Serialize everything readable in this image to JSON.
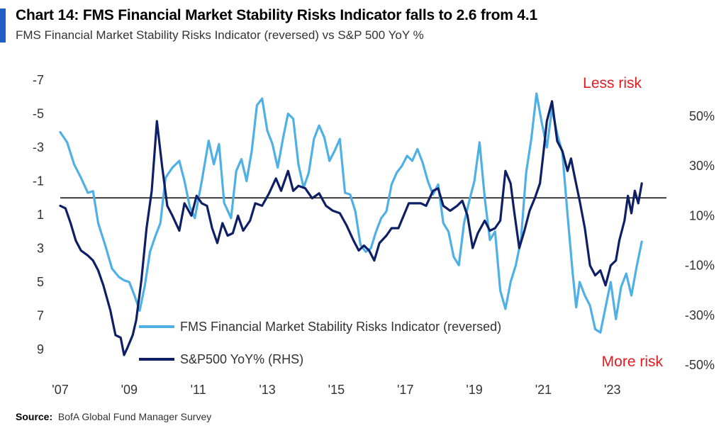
{
  "title": "Chart 14: FMS Financial Market Stability Risks Indicator falls to 2.6 from 4.1",
  "subtitle": "FMS Financial Market Stability Risks Indicator (reversed) vs S&P 500 YoY %",
  "source_label": "Source:",
  "source_text": "BofA Global Fund Manager Survey",
  "colors": {
    "accent": "#1F5FC7",
    "light_series": "#4FB0E6",
    "dark_series": "#0E1F66",
    "annotation": "#E31B23",
    "zero_line": "#000000"
  },
  "chart_data": {
    "type": "line",
    "x_range": [
      2007.0,
      2023.6
    ],
    "x_ticks": [
      {
        "value": 2007,
        "label": "'07"
      },
      {
        "value": 2009,
        "label": "'09"
      },
      {
        "value": 2011,
        "label": "'11"
      },
      {
        "value": 2013,
        "label": "'13"
      },
      {
        "value": 2015,
        "label": "'15"
      },
      {
        "value": 2017,
        "label": "'17"
      },
      {
        "value": 2019,
        "label": "'19"
      },
      {
        "value": 2021,
        "label": "'21"
      },
      {
        "value": 2023,
        "label": "'23"
      }
    ],
    "left_axis": {
      "reversed": true,
      "range": [
        -7,
        9
      ],
      "ticks": [
        {
          "value": -7,
          "label": "-7"
        },
        {
          "value": -5,
          "label": "-5"
        },
        {
          "value": -3,
          "label": "-3"
        },
        {
          "value": -1,
          "label": "-1"
        },
        {
          "value": 1,
          "label": "1"
        },
        {
          "value": 3,
          "label": "3"
        },
        {
          "value": 5,
          "label": "5"
        },
        {
          "value": 7,
          "label": "7"
        },
        {
          "value": 9,
          "label": "9"
        }
      ]
    },
    "right_axis": {
      "range": [
        -50,
        60
      ],
      "ticks": [
        {
          "value": 50,
          "label": "50%"
        },
        {
          "value": 30,
          "label": "30%"
        },
        {
          "value": 10,
          "label": "10%"
        },
        {
          "value": -10,
          "label": "-10%"
        },
        {
          "value": -30,
          "label": "-30%"
        },
        {
          "value": -50,
          "label": "-50%"
        }
      ]
    },
    "reference_line": {
      "axis": "left",
      "value": 0
    },
    "annotations": [
      {
        "text": "Less risk",
        "position": "top-right"
      },
      {
        "text": "More risk",
        "position": "bottom-right"
      }
    ],
    "legend": {
      "placement": "bottom-center"
    },
    "series": [
      {
        "name": "FMS Financial Market Stability Risks Indicator (reversed)",
        "axis": "left",
        "points": [
          [
            2007.0,
            -3.9
          ],
          [
            2007.2,
            -3.3
          ],
          [
            2007.4,
            -2.0
          ],
          [
            2007.6,
            -1.2
          ],
          [
            2007.8,
            -0.3
          ],
          [
            2007.95,
            -0.4
          ],
          [
            2008.1,
            1.5
          ],
          [
            2008.3,
            2.8
          ],
          [
            2008.5,
            4.2
          ],
          [
            2008.7,
            4.7
          ],
          [
            2008.85,
            4.9
          ],
          [
            2009.0,
            5.0
          ],
          [
            2009.15,
            5.8
          ],
          [
            2009.3,
            6.7
          ],
          [
            2009.45,
            5.2
          ],
          [
            2009.6,
            3.2
          ],
          [
            2009.75,
            2.3
          ],
          [
            2009.9,
            1.5
          ],
          [
            2010.05,
            -1.2
          ],
          [
            2010.25,
            -1.8
          ],
          [
            2010.45,
            -2.2
          ],
          [
            2010.6,
            -1.0
          ],
          [
            2010.75,
            0.5
          ],
          [
            2010.9,
            1.2
          ],
          [
            2011.1,
            -1.0
          ],
          [
            2011.3,
            -3.4
          ],
          [
            2011.45,
            -2.0
          ],
          [
            2011.6,
            -3.2
          ],
          [
            2011.75,
            0.3
          ],
          [
            2011.95,
            1.2
          ],
          [
            2012.1,
            -1.6
          ],
          [
            2012.25,
            -2.3
          ],
          [
            2012.4,
            -1.0
          ],
          [
            2012.55,
            -2.8
          ],
          [
            2012.7,
            -5.5
          ],
          [
            2012.85,
            -5.9
          ],
          [
            2013.0,
            -4.0
          ],
          [
            2013.15,
            -3.2
          ],
          [
            2013.3,
            -1.8
          ],
          [
            2013.45,
            -3.5
          ],
          [
            2013.6,
            -5.0
          ],
          [
            2013.75,
            -4.7
          ],
          [
            2013.9,
            -2.0
          ],
          [
            2014.05,
            -0.6
          ],
          [
            2014.2,
            -1.5
          ],
          [
            2014.35,
            -3.5
          ],
          [
            2014.5,
            -4.3
          ],
          [
            2014.65,
            -3.6
          ],
          [
            2014.8,
            -2.2
          ],
          [
            2014.95,
            -2.8
          ],
          [
            2015.1,
            -3.5
          ],
          [
            2015.25,
            -0.3
          ],
          [
            2015.4,
            -0.2
          ],
          [
            2015.55,
            0.8
          ],
          [
            2015.7,
            2.8
          ],
          [
            2015.85,
            3.2
          ],
          [
            2016.0,
            3.0
          ],
          [
            2016.15,
            2.0
          ],
          [
            2016.3,
            1.2
          ],
          [
            2016.45,
            0.8
          ],
          [
            2016.6,
            -0.8
          ],
          [
            2016.75,
            -1.5
          ],
          [
            2016.9,
            -1.9
          ],
          [
            2017.05,
            -2.5
          ],
          [
            2017.2,
            -2.2
          ],
          [
            2017.35,
            -2.9
          ],
          [
            2017.5,
            -2.1
          ],
          [
            2017.65,
            -1.0
          ],
          [
            2017.8,
            -0.2
          ],
          [
            2017.95,
            -0.8
          ],
          [
            2018.1,
            1.5
          ],
          [
            2018.25,
            2.0
          ],
          [
            2018.4,
            3.5
          ],
          [
            2018.55,
            4.0
          ],
          [
            2018.7,
            1.5
          ],
          [
            2018.85,
            0.2
          ],
          [
            2019.0,
            -1.0
          ],
          [
            2019.15,
            -3.3
          ],
          [
            2019.3,
            0.0
          ],
          [
            2019.45,
            2.5
          ],
          [
            2019.6,
            2.0
          ],
          [
            2019.75,
            5.5
          ],
          [
            2019.9,
            6.6
          ],
          [
            2020.05,
            5.0
          ],
          [
            2020.2,
            4.0
          ],
          [
            2020.35,
            2.5
          ],
          [
            2020.5,
            -1.5
          ],
          [
            2020.65,
            -3.5
          ],
          [
            2020.8,
            -6.2
          ],
          [
            2020.95,
            -4.5
          ],
          [
            2021.1,
            -3.0
          ],
          [
            2021.25,
            -5.3
          ],
          [
            2021.4,
            -3.8
          ],
          [
            2021.55,
            -2.7
          ],
          [
            2021.7,
            1.0
          ],
          [
            2021.85,
            4.5
          ],
          [
            2021.95,
            6.5
          ],
          [
            2022.05,
            5.0
          ],
          [
            2022.2,
            5.8
          ],
          [
            2022.35,
            6.4
          ],
          [
            2022.5,
            7.8
          ],
          [
            2022.65,
            8.0
          ],
          [
            2022.8,
            6.5
          ],
          [
            2022.95,
            5.0
          ],
          [
            2023.1,
            7.2
          ],
          [
            2023.25,
            5.3
          ],
          [
            2023.4,
            4.5
          ],
          [
            2023.55,
            5.8
          ],
          [
            2023.7,
            4.1
          ],
          [
            2023.85,
            2.6
          ]
        ]
      },
      {
        "name": "S&P500 YoY% (RHS)",
        "axis": "right",
        "points": [
          [
            2007.0,
            14
          ],
          [
            2007.15,
            13
          ],
          [
            2007.3,
            7
          ],
          [
            2007.45,
            0
          ],
          [
            2007.6,
            -4
          ],
          [
            2007.8,
            -6
          ],
          [
            2007.95,
            -8
          ],
          [
            2008.1,
            -12
          ],
          [
            2008.25,
            -18
          ],
          [
            2008.45,
            -28
          ],
          [
            2008.6,
            -38
          ],
          [
            2008.75,
            -39
          ],
          [
            2008.85,
            -46
          ],
          [
            2008.95,
            -43
          ],
          [
            2009.1,
            -38
          ],
          [
            2009.2,
            -32
          ],
          [
            2009.35,
            -16
          ],
          [
            2009.5,
            5
          ],
          [
            2009.65,
            20
          ],
          [
            2009.8,
            48
          ],
          [
            2009.95,
            30
          ],
          [
            2010.1,
            14
          ],
          [
            2010.25,
            10
          ],
          [
            2010.45,
            4
          ],
          [
            2010.6,
            15
          ],
          [
            2010.8,
            10
          ],
          [
            2010.95,
            18
          ],
          [
            2011.1,
            15
          ],
          [
            2011.25,
            14
          ],
          [
            2011.4,
            5
          ],
          [
            2011.55,
            -1
          ],
          [
            2011.7,
            7
          ],
          [
            2011.85,
            2
          ],
          [
            2012.0,
            3
          ],
          [
            2012.15,
            10
          ],
          [
            2012.3,
            4
          ],
          [
            2012.5,
            8
          ],
          [
            2012.65,
            15
          ],
          [
            2012.85,
            14
          ],
          [
            2013.05,
            19
          ],
          [
            2013.25,
            25
          ],
          [
            2013.4,
            20
          ],
          [
            2013.6,
            28
          ],
          [
            2013.75,
            20
          ],
          [
            2013.9,
            22
          ],
          [
            2014.1,
            21
          ],
          [
            2014.3,
            17
          ],
          [
            2014.5,
            19
          ],
          [
            2014.7,
            14
          ],
          [
            2014.9,
            12
          ],
          [
            2015.1,
            11
          ],
          [
            2015.3,
            6
          ],
          [
            2015.5,
            0
          ],
          [
            2015.65,
            -4
          ],
          [
            2015.8,
            -2
          ],
          [
            2015.95,
            -4
          ],
          [
            2016.1,
            -8
          ],
          [
            2016.25,
            -1
          ],
          [
            2016.45,
            2
          ],
          [
            2016.6,
            5
          ],
          [
            2016.8,
            5
          ],
          [
            2016.95,
            10
          ],
          [
            2017.1,
            15
          ],
          [
            2017.3,
            15
          ],
          [
            2017.45,
            15
          ],
          [
            2017.6,
            14
          ],
          [
            2017.8,
            20
          ],
          [
            2017.95,
            21
          ],
          [
            2018.1,
            14
          ],
          [
            2018.3,
            12
          ],
          [
            2018.5,
            14
          ],
          [
            2018.65,
            16
          ],
          [
            2018.8,
            10
          ],
          [
            2018.95,
            -3
          ],
          [
            2019.1,
            3
          ],
          [
            2019.3,
            8
          ],
          [
            2019.45,
            4
          ],
          [
            2019.6,
            5
          ],
          [
            2019.75,
            8
          ],
          [
            2019.9,
            28
          ],
          [
            2020.05,
            23
          ],
          [
            2020.15,
            12
          ],
          [
            2020.3,
            -3
          ],
          [
            2020.45,
            4
          ],
          [
            2020.6,
            12
          ],
          [
            2020.75,
            17
          ],
          [
            2020.9,
            23
          ],
          [
            2021.0,
            35
          ],
          [
            2021.1,
            48
          ],
          [
            2021.25,
            56
          ],
          [
            2021.4,
            40
          ],
          [
            2021.55,
            36
          ],
          [
            2021.7,
            28
          ],
          [
            2021.8,
            33
          ],
          [
            2021.9,
            26
          ],
          [
            2022.05,
            16
          ],
          [
            2022.2,
            5
          ],
          [
            2022.35,
            -10
          ],
          [
            2022.5,
            -14
          ],
          [
            2022.65,
            -12
          ],
          [
            2022.8,
            -18
          ],
          [
            2022.95,
            -10
          ],
          [
            2023.1,
            -8
          ],
          [
            2023.2,
            0
          ],
          [
            2023.35,
            8
          ],
          [
            2023.45,
            18
          ],
          [
            2023.55,
            11
          ],
          [
            2023.65,
            20
          ],
          [
            2023.75,
            15
          ],
          [
            2023.85,
            23
          ]
        ]
      }
    ]
  }
}
